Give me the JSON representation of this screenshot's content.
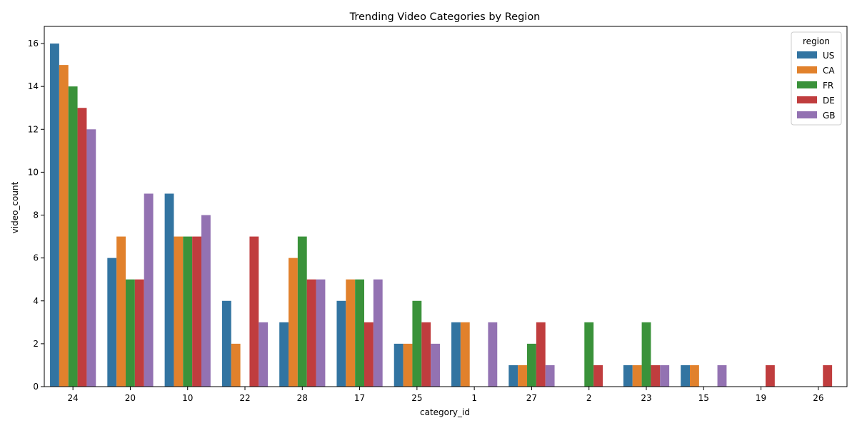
{
  "chart_data": {
    "type": "bar",
    "title": "Trending Video Categories by Region",
    "xlabel": "category_id",
    "ylabel": "video_count",
    "ylim": [
      0,
      16.8
    ],
    "yticks": [
      0,
      2,
      4,
      6,
      8,
      10,
      12,
      14,
      16
    ],
    "categories": [
      "24",
      "20",
      "10",
      "22",
      "28",
      "17",
      "25",
      "1",
      "27",
      "2",
      "23",
      "15",
      "19",
      "26"
    ],
    "legend": {
      "title": "region",
      "position": "top-right"
    },
    "grid": false,
    "series": [
      {
        "name": "US",
        "color": "#3274a1",
        "values": [
          16,
          6,
          9,
          4,
          3,
          4,
          2,
          3,
          1,
          0,
          1,
          1,
          0,
          0
        ]
      },
      {
        "name": "CA",
        "color": "#e1812c",
        "values": [
          15,
          7,
          7,
          2,
          6,
          5,
          2,
          3,
          1,
          0,
          1,
          1,
          0,
          0
        ]
      },
      {
        "name": "FR",
        "color": "#3a923a",
        "values": [
          14,
          5,
          7,
          0,
          7,
          5,
          4,
          0,
          2,
          3,
          3,
          0,
          0,
          0
        ]
      },
      {
        "name": "DE",
        "color": "#c03d3e",
        "values": [
          13,
          5,
          7,
          7,
          5,
          3,
          3,
          0,
          3,
          1,
          1,
          0,
          1,
          1
        ]
      },
      {
        "name": "GB",
        "color": "#9372b2",
        "values": [
          12,
          9,
          8,
          3,
          5,
          5,
          2,
          3,
          1,
          0,
          1,
          1,
          0,
          0
        ]
      }
    ]
  }
}
